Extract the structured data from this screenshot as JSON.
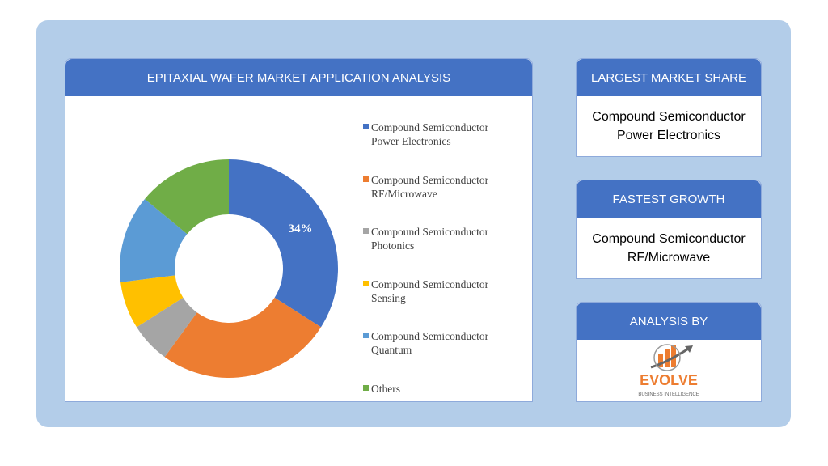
{
  "chart_data": {
    "type": "donut",
    "title": "EPITAXIAL WAFER MARKET APPLICATION ANALYSIS",
    "categories": [
      "Compound Semiconductor Power Electronics",
      "Compound Semiconductor RF/Microwave",
      "Compound Semiconductor Photonics",
      "Compound Semiconductor Sensing",
      "Compound Semiconductor Quantum",
      "Others"
    ],
    "values": [
      34,
      26,
      6,
      7,
      13,
      14
    ],
    "value_labels": [
      "34%",
      null,
      null,
      null,
      null,
      null
    ],
    "colors": [
      "#4472c4",
      "#ed7d31",
      "#a5a5a5",
      "#ffc000",
      "#5b9bd5",
      "#70ad47"
    ]
  },
  "cards": [
    {
      "title": "LARGEST MARKET SHARE",
      "text": "Compound Semiconductor Power Electronics"
    },
    {
      "title": "FASTEST GROWTH",
      "text": "Compound Semiconductor RF/Microwave"
    }
  ],
  "analysis_by": {
    "title": "ANALYSIS BY",
    "logo_text": "EVOLVE",
    "logo_subtext": "BUSINESS INTELLIGENCE"
  }
}
